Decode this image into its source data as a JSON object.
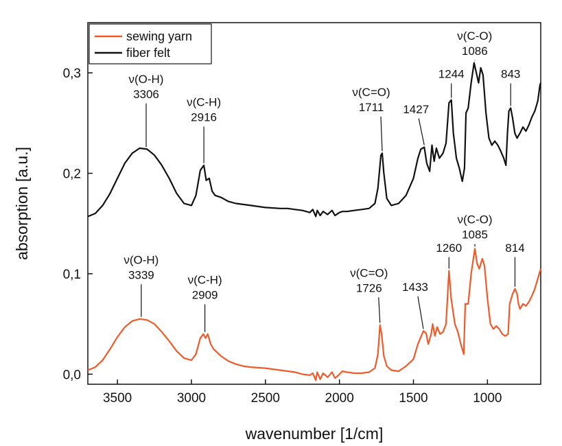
{
  "chart_data": {
    "type": "line",
    "xlabel": "wavenumber [1/cm]",
    "ylabel": "absorption [a.u.]",
    "xlim": [
      3700,
      640
    ],
    "ylim": [
      -0.01,
      0.35
    ],
    "x_reversed": true,
    "x_ticks": [
      3500,
      3000,
      2500,
      2000,
      1500,
      1000
    ],
    "y_ticks": [
      0.0,
      0.1,
      0.2,
      0.3
    ],
    "y_tick_labels": [
      "0,0",
      "0,1",
      "0,2",
      "0,3"
    ],
    "grid": false,
    "legend_position": "top-left",
    "series": [
      {
        "name": "sewing yarn",
        "color": "#f05a28",
        "points": [
          [
            3700,
            0.004
          ],
          [
            3650,
            0.007
          ],
          [
            3600,
            0.014
          ],
          [
            3550,
            0.025
          ],
          [
            3500,
            0.037
          ],
          [
            3450,
            0.047
          ],
          [
            3400,
            0.053
          ],
          [
            3350,
            0.055
          ],
          [
            3300,
            0.054
          ],
          [
            3250,
            0.05
          ],
          [
            3200,
            0.042
          ],
          [
            3150,
            0.033
          ],
          [
            3100,
            0.023
          ],
          [
            3050,
            0.016
          ],
          [
            3000,
            0.014
          ],
          [
            2970,
            0.02
          ],
          [
            2940,
            0.036
          ],
          [
            2920,
            0.04
          ],
          [
            2905,
            0.036
          ],
          [
            2890,
            0.04
          ],
          [
            2870,
            0.03
          ],
          [
            2850,
            0.025
          ],
          [
            2800,
            0.018
          ],
          [
            2750,
            0.013
          ],
          [
            2700,
            0.01
          ],
          [
            2650,
            0.008
          ],
          [
            2600,
            0.007
          ],
          [
            2500,
            0.006
          ],
          [
            2400,
            0.004
          ],
          [
            2350,
            0.003
          ],
          [
            2300,
            0.002
          ],
          [
            2250,
            0.0
          ],
          [
            2200,
            -0.001
          ],
          [
            2180,
            0.001
          ],
          [
            2160,
            -0.006
          ],
          [
            2150,
            0.002
          ],
          [
            2130,
            -0.005
          ],
          [
            2110,
            0.001
          ],
          [
            2080,
            -0.003
          ],
          [
            2050,
            0.002
          ],
          [
            2030,
            -0.004
          ],
          [
            2000,
            0.0
          ],
          [
            1980,
            0.003
          ],
          [
            1950,
            0.002
          ],
          [
            1900,
            0.001
          ],
          [
            1850,
            0.001
          ],
          [
            1800,
            0.002
          ],
          [
            1760,
            0.006
          ],
          [
            1740,
            0.02
          ],
          [
            1726,
            0.049
          ],
          [
            1715,
            0.04
          ],
          [
            1700,
            0.018
          ],
          [
            1680,
            0.008
          ],
          [
            1650,
            0.004
          ],
          [
            1600,
            0.003
          ],
          [
            1550,
            0.008
          ],
          [
            1500,
            0.015
          ],
          [
            1470,
            0.03
          ],
          [
            1433,
            0.043
          ],
          [
            1415,
            0.041
          ],
          [
            1400,
            0.03
          ],
          [
            1380,
            0.04
          ],
          [
            1370,
            0.05
          ],
          [
            1355,
            0.038
          ],
          [
            1340,
            0.047
          ],
          [
            1320,
            0.04
          ],
          [
            1300,
            0.042
          ],
          [
            1280,
            0.05
          ],
          [
            1260,
            0.103
          ],
          [
            1245,
            0.075
          ],
          [
            1220,
            0.05
          ],
          [
            1200,
            0.042
          ],
          [
            1180,
            0.03
          ],
          [
            1160,
            0.02
          ],
          [
            1150,
            0.07
          ],
          [
            1130,
            0.07
          ],
          [
            1110,
            0.1
          ],
          [
            1085,
            0.125
          ],
          [
            1070,
            0.11
          ],
          [
            1055,
            0.105
          ],
          [
            1035,
            0.115
          ],
          [
            1020,
            0.108
          ],
          [
            1000,
            0.075
          ],
          [
            980,
            0.05
          ],
          [
            960,
            0.045
          ],
          [
            940,
            0.048
          ],
          [
            920,
            0.045
          ],
          [
            900,
            0.04
          ],
          [
            880,
            0.038
          ],
          [
            860,
            0.04
          ],
          [
            850,
            0.07
          ],
          [
            840,
            0.075
          ],
          [
            830,
            0.08
          ],
          [
            814,
            0.085
          ],
          [
            800,
            0.08
          ],
          [
            790,
            0.07
          ],
          [
            780,
            0.065
          ],
          [
            760,
            0.07
          ],
          [
            740,
            0.068
          ],
          [
            720,
            0.072
          ],
          [
            700,
            0.078
          ],
          [
            680,
            0.085
          ],
          [
            660,
            0.095
          ],
          [
            640,
            0.105
          ]
        ]
      },
      {
        "name": "fiber felt",
        "color": "#111111",
        "points": [
          [
            3700,
            0.157
          ],
          [
            3650,
            0.16
          ],
          [
            3600,
            0.168
          ],
          [
            3550,
            0.18
          ],
          [
            3500,
            0.195
          ],
          [
            3450,
            0.21
          ],
          [
            3400,
            0.22
          ],
          [
            3350,
            0.225
          ],
          [
            3300,
            0.224
          ],
          [
            3250,
            0.218
          ],
          [
            3200,
            0.208
          ],
          [
            3150,
            0.195
          ],
          [
            3100,
            0.18
          ],
          [
            3050,
            0.17
          ],
          [
            3000,
            0.168
          ],
          [
            2970,
            0.178
          ],
          [
            2940,
            0.203
          ],
          [
            2916,
            0.208
          ],
          [
            2900,
            0.193
          ],
          [
            2880,
            0.195
          ],
          [
            2860,
            0.182
          ],
          [
            2840,
            0.178
          ],
          [
            2800,
            0.176
          ],
          [
            2750,
            0.172
          ],
          [
            2700,
            0.17
          ],
          [
            2600,
            0.168
          ],
          [
            2500,
            0.166
          ],
          [
            2400,
            0.165
          ],
          [
            2350,
            0.165
          ],
          [
            2300,
            0.164
          ],
          [
            2250,
            0.163
          ],
          [
            2200,
            0.161
          ],
          [
            2180,
            0.164
          ],
          [
            2160,
            0.157
          ],
          [
            2150,
            0.163
          ],
          [
            2130,
            0.158
          ],
          [
            2110,
            0.162
          ],
          [
            2080,
            0.159
          ],
          [
            2050,
            0.163
          ],
          [
            2030,
            0.158
          ],
          [
            2000,
            0.161
          ],
          [
            1980,
            0.162
          ],
          [
            1950,
            0.162
          ],
          [
            1900,
            0.163
          ],
          [
            1850,
            0.164
          ],
          [
            1800,
            0.165
          ],
          [
            1760,
            0.17
          ],
          [
            1740,
            0.185
          ],
          [
            1720,
            0.218
          ],
          [
            1711,
            0.22
          ],
          [
            1700,
            0.2
          ],
          [
            1680,
            0.175
          ],
          [
            1650,
            0.168
          ],
          [
            1600,
            0.17
          ],
          [
            1550,
            0.178
          ],
          [
            1500,
            0.195
          ],
          [
            1470,
            0.215
          ],
          [
            1450,
            0.224
          ],
          [
            1427,
            0.226
          ],
          [
            1410,
            0.21
          ],
          [
            1390,
            0.202
          ],
          [
            1375,
            0.228
          ],
          [
            1360,
            0.212
          ],
          [
            1345,
            0.225
          ],
          [
            1325,
            0.215
          ],
          [
            1300,
            0.22
          ],
          [
            1280,
            0.23
          ],
          [
            1260,
            0.27
          ],
          [
            1244,
            0.273
          ],
          [
            1230,
            0.24
          ],
          [
            1210,
            0.215
          ],
          [
            1190,
            0.205
          ],
          [
            1170,
            0.192
          ],
          [
            1155,
            0.205
          ],
          [
            1145,
            0.26
          ],
          [
            1130,
            0.265
          ],
          [
            1110,
            0.29
          ],
          [
            1090,
            0.31
          ],
          [
            1075,
            0.3
          ],
          [
            1060,
            0.29
          ],
          [
            1045,
            0.305
          ],
          [
            1030,
            0.298
          ],
          [
            1010,
            0.26
          ],
          [
            990,
            0.235
          ],
          [
            970,
            0.228
          ],
          [
            950,
            0.232
          ],
          [
            930,
            0.228
          ],
          [
            910,
            0.222
          ],
          [
            890,
            0.215
          ],
          [
            875,
            0.208
          ],
          [
            865,
            0.24
          ],
          [
            855,
            0.262
          ],
          [
            843,
            0.265
          ],
          [
            830,
            0.255
          ],
          [
            815,
            0.24
          ],
          [
            800,
            0.235
          ],
          [
            780,
            0.24
          ],
          [
            760,
            0.246
          ],
          [
            740,
            0.242
          ],
          [
            720,
            0.248
          ],
          [
            700,
            0.256
          ],
          [
            680,
            0.262
          ],
          [
            660,
            0.272
          ],
          [
            645,
            0.288
          ],
          [
            640,
            0.29
          ]
        ]
      }
    ],
    "annotations": [
      {
        "series": "fiber felt",
        "mode": "ONLY_WAVENUMBER_LABEL",
        "bond": "ν(O-H)",
        "value": "3306",
        "x": 3306,
        "y": 0.224,
        "text_y": 0.275
      },
      {
        "series": "fiber felt",
        "bond": "ν(C-H)",
        "value": "2916",
        "x": 2916,
        "y": 0.208,
        "text_y": 0.252
      },
      {
        "series": "fiber felt",
        "bond": "ν(C=O)",
        "value": "1711",
        "x": 1711,
        "y": 0.22,
        "text_y": 0.262
      },
      {
        "series": "fiber felt",
        "bond": "",
        "value": "1427",
        "x": 1427,
        "y": 0.226,
        "text_y": 0.26
      },
      {
        "series": "fiber felt",
        "bond": "",
        "value": "1244",
        "x": 1244,
        "y": 0.273,
        "text_y": 0.295
      },
      {
        "series": "fiber felt",
        "bond": "ν(C-O)",
        "value": "1086",
        "x": 1086,
        "y": 0.31,
        "text_y": 0.318
      },
      {
        "series": "fiber felt",
        "bond": "",
        "value": "843",
        "x": 843,
        "y": 0.265,
        "text_y": 0.295
      },
      {
        "series": "sewing yarn",
        "bond": "ν(O-H)",
        "value": "3339",
        "x": 3339,
        "y": 0.055,
        "text_y": 0.095
      },
      {
        "series": "sewing yarn",
        "bond": "ν(C-H)",
        "value": "2909",
        "x": 2909,
        "y": 0.04,
        "text_y": 0.075
      },
      {
        "series": "sewing yarn",
        "bond": "ν(C=O)",
        "value": "1726",
        "x": 1726,
        "y": 0.049,
        "text_y": 0.082
      },
      {
        "series": "sewing yarn",
        "bond": "",
        "value": "1433",
        "x": 1433,
        "y": 0.043,
        "text_y": 0.083
      },
      {
        "series": "sewing yarn",
        "bond": "",
        "value": "1260",
        "x": 1260,
        "y": 0.103,
        "text_y": 0.122
      },
      {
        "series": "sewing yarn",
        "bond": "ν(C-O)",
        "value": "1085",
        "x": 1085,
        "y": 0.125,
        "text_y": 0.135
      },
      {
        "series": "sewing yarn",
        "bond": "",
        "value": "814",
        "x": 814,
        "y": 0.085,
        "text_y": 0.122
      }
    ]
  }
}
